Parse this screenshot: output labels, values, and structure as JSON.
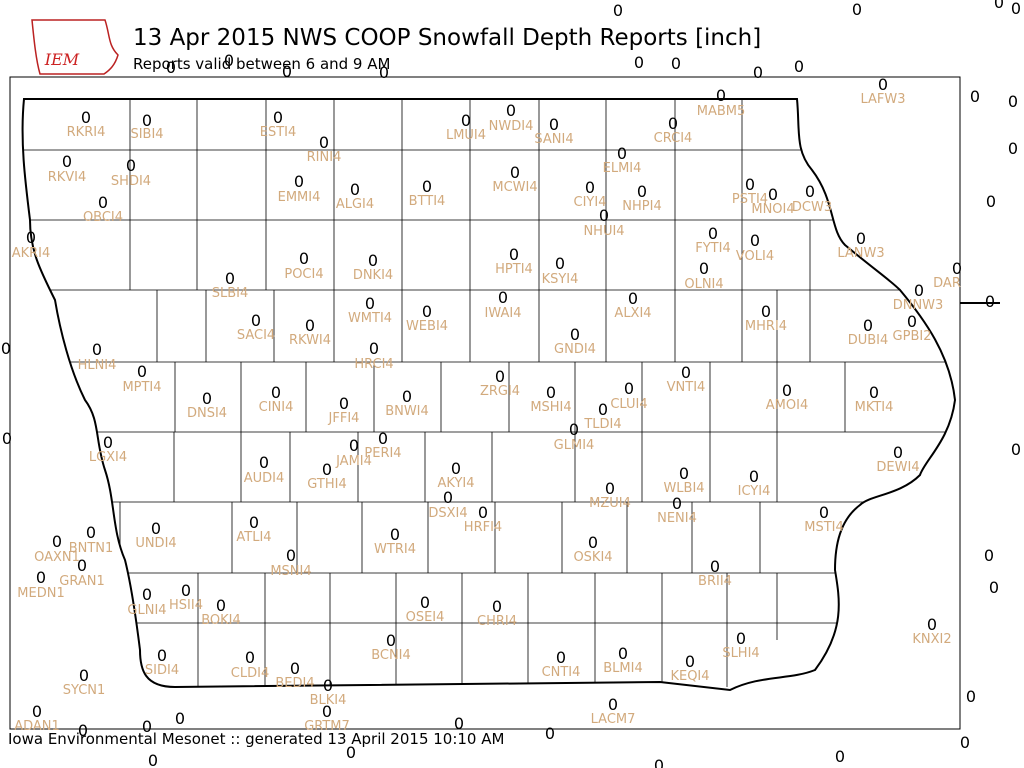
{
  "header": {
    "title": "13 Apr 2015 NWS COOP Snowfall Depth Reports [inch]",
    "subtitle": "Reports valid between 6 and 9 AM",
    "logo": "IEM"
  },
  "footer": "Iowa Environmental Mesonet :: generated 13 April 2015 10:10 AM",
  "stations": [
    {
      "id": "RKRI4",
      "value": 0
    },
    {
      "id": "SIBI4",
      "value": 0
    },
    {
      "id": "ESTI4",
      "value": 0
    },
    {
      "id": "RINI4",
      "value": 0
    },
    {
      "id": "LMUI4",
      "value": 0
    },
    {
      "id": "NWDI4",
      "value": 0
    },
    {
      "id": "SANI4",
      "value": 0
    },
    {
      "id": "CRCI4",
      "value": 0
    },
    {
      "id": "MABM5",
      "value": 0
    },
    {
      "id": "LAFW3",
      "value": 0
    },
    {
      "id": "RKVI4",
      "value": 0
    },
    {
      "id": "SHDI4",
      "value": 0
    },
    {
      "id": "EMMI4",
      "value": 0
    },
    {
      "id": "ALGI4",
      "value": 0
    },
    {
      "id": "BTTI4",
      "value": 0
    },
    {
      "id": "MCWI4",
      "value": 0
    },
    {
      "id": "CIYI4",
      "value": 0
    },
    {
      "id": "ELMI4",
      "value": 0
    },
    {
      "id": "NHPI4",
      "value": 0
    },
    {
      "id": "PSTI4",
      "value": 0
    },
    {
      "id": "MNOI4",
      "value": 0
    },
    {
      "id": "DCW3",
      "value": 0
    },
    {
      "id": "OBCI4",
      "value": 0
    },
    {
      "id": "NHUI4",
      "value": 0
    },
    {
      "id": "FYTI4",
      "value": 0
    },
    {
      "id": "VOLI4",
      "value": 0
    },
    {
      "id": "AKRI4",
      "value": 0
    },
    {
      "id": "LANW3",
      "value": 0
    },
    {
      "id": "HPTI4",
      "value": 0
    },
    {
      "id": "KSYI4",
      "value": 0
    },
    {
      "id": "POCI4",
      "value": 0
    },
    {
      "id": "DNKI4",
      "value": 0
    },
    {
      "id": "OLNI4",
      "value": 0
    },
    {
      "id": "SLBI4",
      "value": 0
    },
    {
      "id": "DAR",
      "value": 0
    },
    {
      "id": "DNNW3",
      "value": 0
    },
    {
      "id": "IWAI4",
      "value": 0
    },
    {
      "id": "ALXI4",
      "value": 0
    },
    {
      "id": "WMTI4",
      "value": 0
    },
    {
      "id": "WEBI4",
      "value": 0
    },
    {
      "id": "MHRI4",
      "value": 0
    },
    {
      "id": "SACI4",
      "value": 0
    },
    {
      "id": "RKWI4",
      "value": 0
    },
    {
      "id": "DUBI4",
      "value": 0
    },
    {
      "id": "GPBI2",
      "value": 0
    },
    {
      "id": "GNDI4",
      "value": 0
    },
    {
      "id": "HLNI4",
      "value": 0
    },
    {
      "id": "HRCI4",
      "value": 0
    },
    {
      "id": "MPTI4",
      "value": 0
    },
    {
      "id": "ZRGI4",
      "value": 0
    },
    {
      "id": "VNTI4",
      "value": 0
    },
    {
      "id": "MSHI4",
      "value": 0
    },
    {
      "id": "CLUI4",
      "value": 0
    },
    {
      "id": "AMOI4",
      "value": 0
    },
    {
      "id": "DNSI4",
      "value": 0
    },
    {
      "id": "CINI4",
      "value": 0
    },
    {
      "id": "JFFI4",
      "value": 0
    },
    {
      "id": "BNWI4",
      "value": 0
    },
    {
      "id": "MKTI4",
      "value": 0
    },
    {
      "id": "TLDI4",
      "value": 0
    },
    {
      "id": "LGXI4",
      "value": 0
    },
    {
      "id": "PERI4",
      "value": 0
    },
    {
      "id": "JAMI4",
      "value": 0
    },
    {
      "id": "GLMI4",
      "value": 0
    },
    {
      "id": "DEWI4",
      "value": 0
    },
    {
      "id": "AUDI4",
      "value": 0
    },
    {
      "id": "GTHI4",
      "value": 0
    },
    {
      "id": "AKYI4",
      "value": 0
    },
    {
      "id": "WLBI4",
      "value": 0
    },
    {
      "id": "ICYI4",
      "value": 0
    },
    {
      "id": "MZUI4",
      "value": 0
    },
    {
      "id": "NENI4",
      "value": 0
    },
    {
      "id": "DSXI4",
      "value": 0
    },
    {
      "id": "HRFI4",
      "value": 0
    },
    {
      "id": "MSTI4",
      "value": 0
    },
    {
      "id": "ATLI4",
      "value": 0
    },
    {
      "id": "UNDI4",
      "value": 0
    },
    {
      "id": "BNTN1",
      "value": 0
    },
    {
      "id": "WTRI4",
      "value": 0
    },
    {
      "id": "OAXN1",
      "value": 0
    },
    {
      "id": "OSKI4",
      "value": 0
    },
    {
      "id": "MSNI4",
      "value": 0
    },
    {
      "id": "BRII4",
      "value": 0
    },
    {
      "id": "GRAN1",
      "value": 0
    },
    {
      "id": "MEDN1",
      "value": 0
    },
    {
      "id": "HSII4",
      "value": 0
    },
    {
      "id": "GLNI4",
      "value": 0
    },
    {
      "id": "BOKI4",
      "value": 0
    },
    {
      "id": "OSEI4",
      "value": 0
    },
    {
      "id": "CHRI4",
      "value": 0
    },
    {
      "id": "KNXI2",
      "value": 0
    },
    {
      "id": "BCNI4",
      "value": 0
    },
    {
      "id": "SLHI4",
      "value": 0
    },
    {
      "id": "SIDI4",
      "value": 0
    },
    {
      "id": "CLDI4",
      "value": 0
    },
    {
      "id": "BEDI4",
      "value": 0
    },
    {
      "id": "CNTI4",
      "value": 0
    },
    {
      "id": "BLMI4",
      "value": 0
    },
    {
      "id": "KEQI4",
      "value": 0
    },
    {
      "id": "SYCN1",
      "value": 0
    },
    {
      "id": "BLKI4",
      "value": 0
    },
    {
      "id": "LACM7",
      "value": 0
    },
    {
      "id": "GRTM7",
      "value": 0
    },
    {
      "id": "ADAN1",
      "value": 0
    }
  ],
  "unlabeled_values": [
    0,
    0,
    0,
    0,
    0,
    0,
    0,
    0,
    0,
    0,
    0,
    0,
    0,
    0,
    0,
    0,
    0,
    0,
    0,
    0,
    0,
    0,
    0,
    0,
    0,
    0,
    0,
    0,
    0,
    0,
    0,
    0,
    0
  ]
}
